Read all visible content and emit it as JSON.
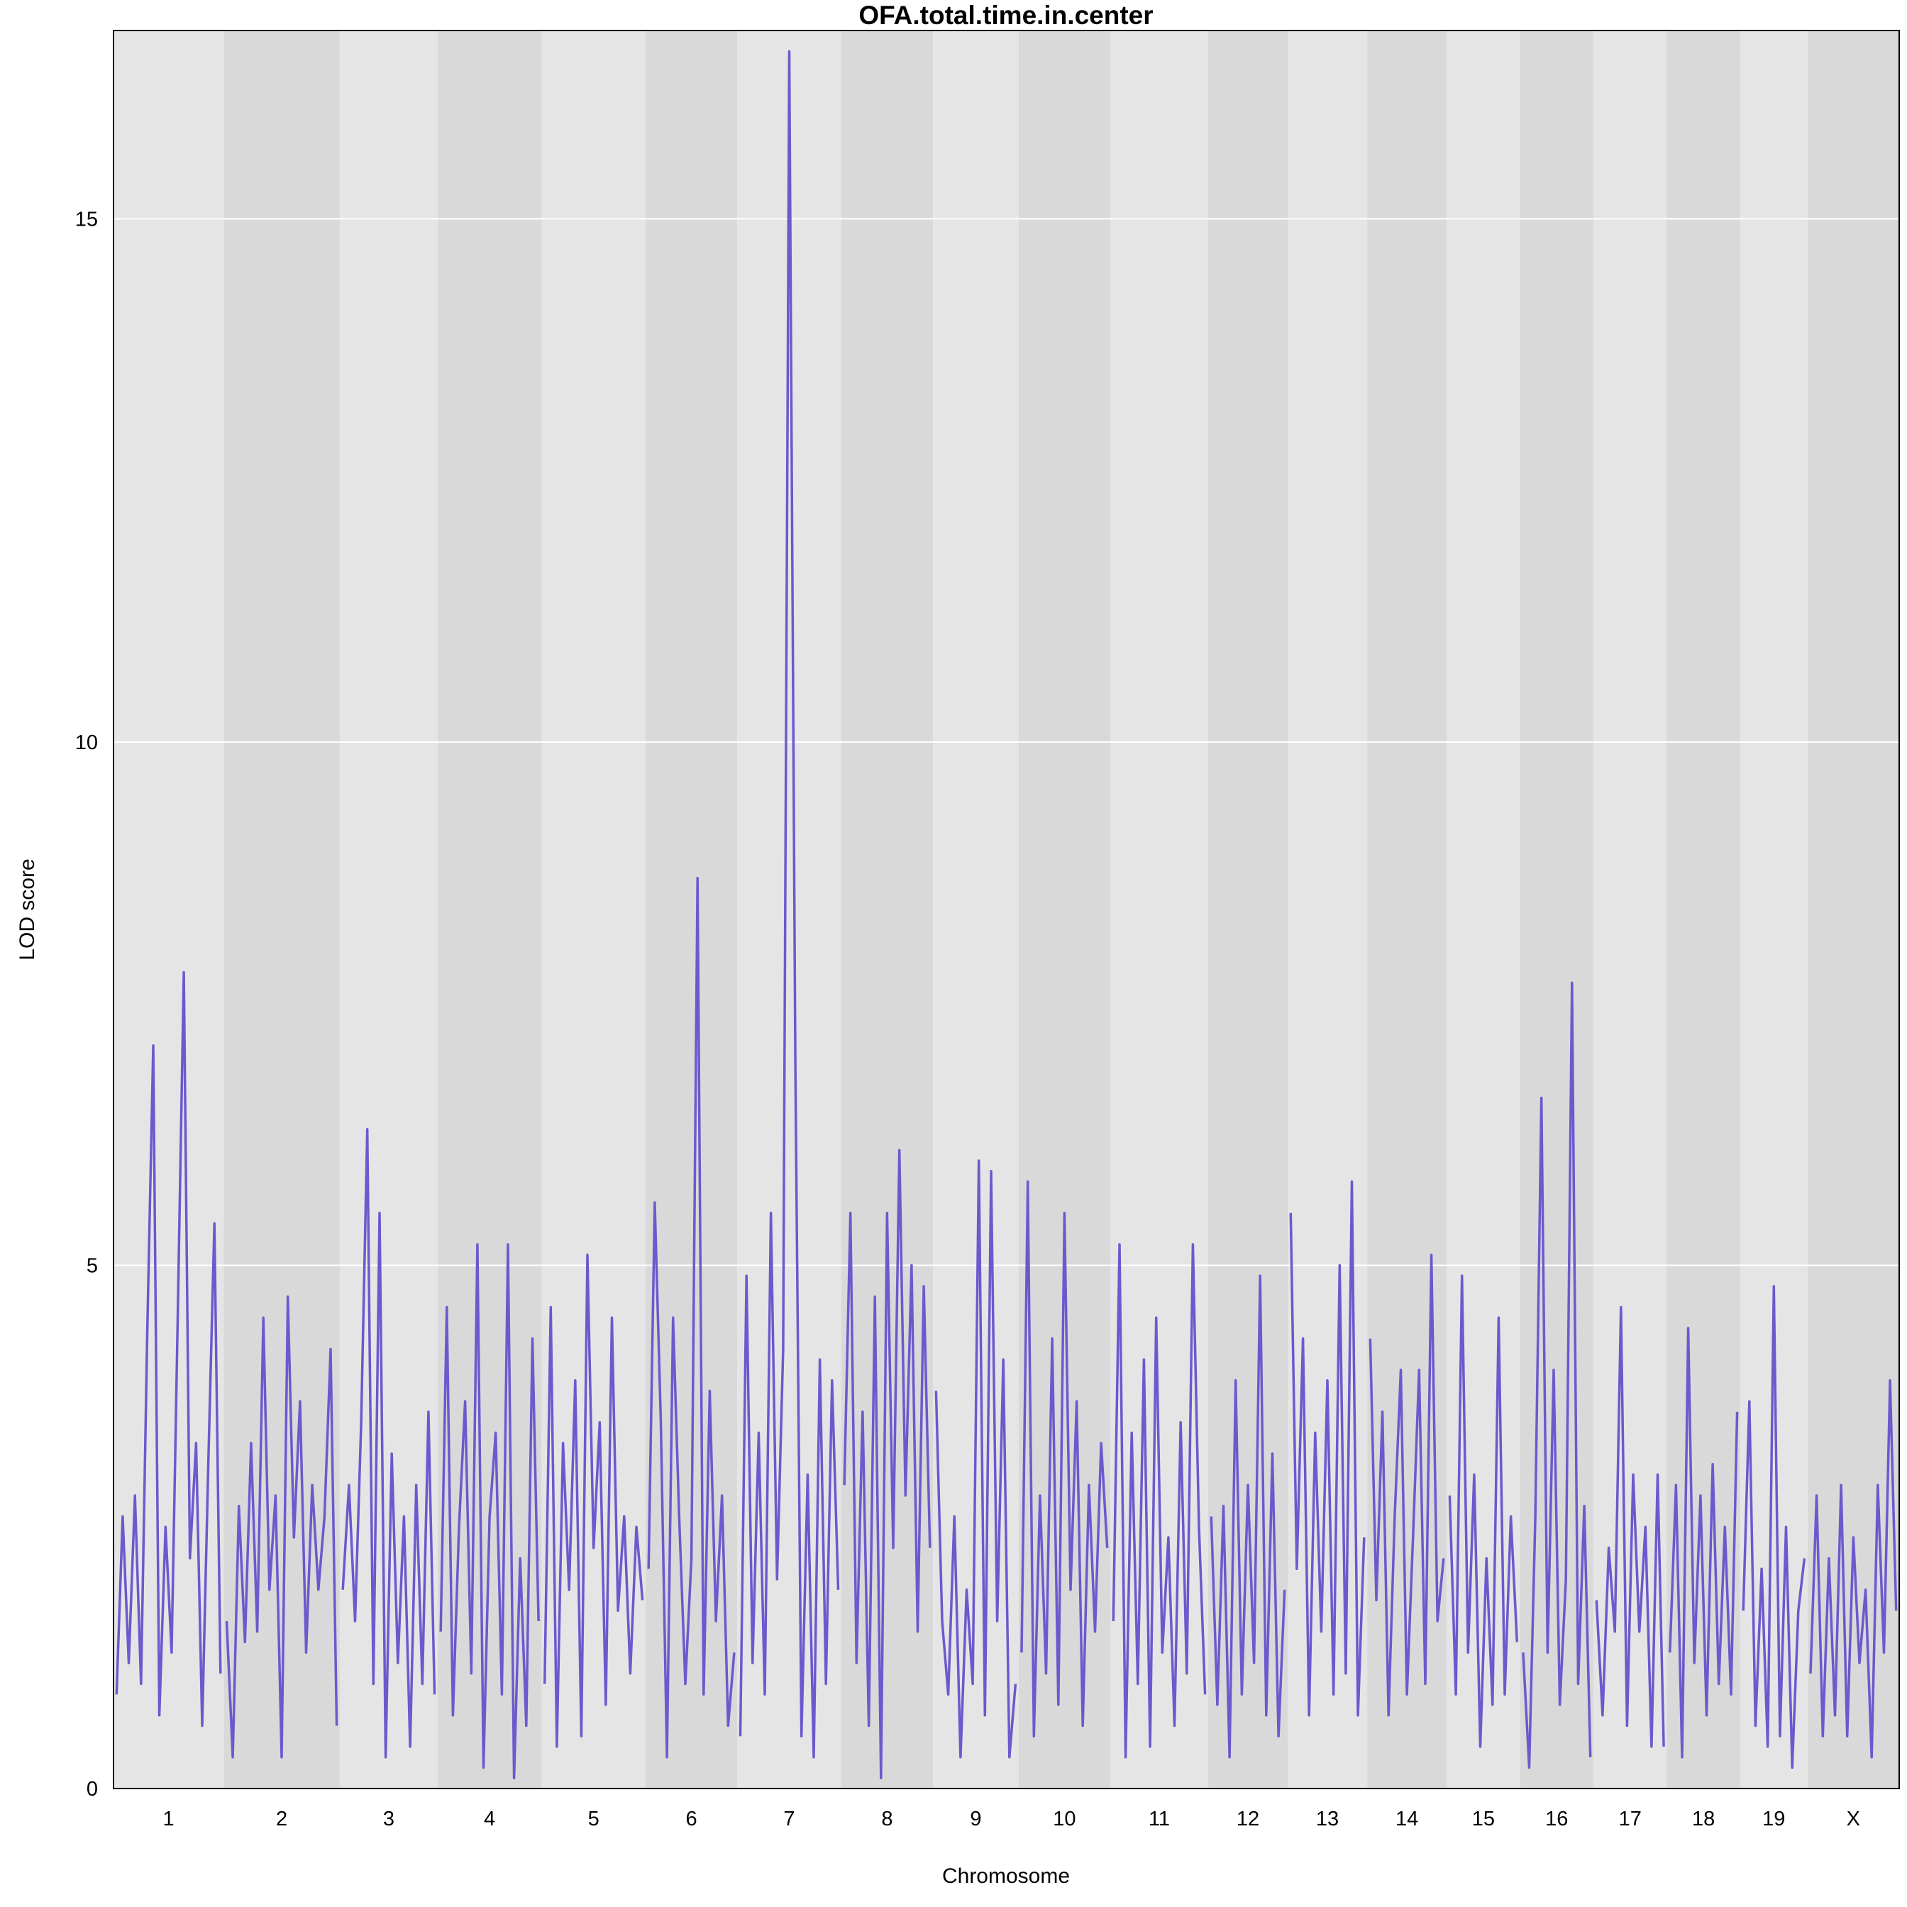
{
  "chart_data": {
    "type": "line",
    "title": "OFA.total.time.in.center",
    "x_label": "Chromosome",
    "y_label": "LOD score",
    "ylim": [
      0,
      16.8
    ],
    "yticks": [
      0,
      5,
      10,
      15
    ],
    "grid": true,
    "color": "#6a5acd",
    "band_colors": [
      "#e5e5e5",
      "#d9d9d9"
    ],
    "chromosomes": [
      {
        "label": "1",
        "values": [
          0.9,
          2.6,
          1.2,
          2.8,
          1.0,
          4.3,
          7.1,
          0.7,
          2.5,
          1.3,
          4.5,
          7.8,
          2.2,
          3.3,
          0.6,
          3.1,
          5.4,
          1.1
        ]
      },
      {
        "label": "2",
        "values": [
          1.6,
          0.3,
          2.7,
          1.4,
          3.3,
          1.5,
          4.5,
          1.9,
          2.8,
          0.3,
          4.7,
          2.4,
          3.7,
          1.3,
          2.9,
          1.9,
          2.6,
          4.2,
          0.6
        ]
      },
      {
        "label": "3",
        "values": [
          1.9,
          2.9,
          1.6,
          3.5,
          6.3,
          1.0,
          5.5,
          0.3,
          3.2,
          1.2,
          2.6,
          0.4,
          2.9,
          1.0,
          3.6,
          0.9
        ]
      },
      {
        "label": "4",
        "values": [
          1.5,
          4.6,
          0.7,
          2.5,
          3.7,
          1.1,
          5.2,
          0.2,
          2.6,
          3.4,
          0.9,
          5.2,
          0.1,
          2.2,
          0.6,
          4.3,
          1.6
        ]
      },
      {
        "label": "5",
        "values": [
          1.0,
          4.6,
          0.4,
          3.3,
          1.9,
          3.9,
          0.5,
          5.1,
          2.3,
          3.5,
          0.8,
          4.5,
          1.7,
          2.6,
          1.1,
          2.5,
          1.8
        ]
      },
      {
        "label": "6",
        "values": [
          2.1,
          5.6,
          3.5,
          0.3,
          4.5,
          2.6,
          1.0,
          2.2,
          8.7,
          0.9,
          3.8,
          1.6,
          2.8,
          0.6,
          1.3
        ]
      },
      {
        "label": "7",
        "values": [
          0.5,
          4.9,
          1.2,
          3.4,
          0.9,
          5.5,
          2.0,
          4.2,
          16.6,
          6.9,
          0.5,
          3.0,
          0.3,
          4.1,
          1.0,
          3.9,
          1.9
        ]
      },
      {
        "label": "8",
        "values": [
          2.9,
          5.5,
          1.2,
          3.6,
          0.6,
          4.7,
          0.1,
          5.5,
          2.3,
          6.1,
          2.8,
          5.0,
          1.5,
          4.8,
          2.3
        ]
      },
      {
        "label": "9",
        "values": [
          3.8,
          1.6,
          0.9,
          2.6,
          0.3,
          1.9,
          1.0,
          6.0,
          0.7,
          5.9,
          1.6,
          4.1,
          0.3,
          1.0
        ]
      },
      {
        "label": "10",
        "values": [
          1.3,
          5.8,
          0.5,
          2.8,
          1.1,
          4.3,
          0.8,
          5.5,
          1.9,
          3.7,
          0.6,
          2.9,
          1.5,
          3.3,
          2.3
        ]
      },
      {
        "label": "11",
        "values": [
          1.6,
          5.2,
          0.3,
          3.4,
          1.0,
          4.1,
          0.4,
          4.5,
          1.3,
          2.4,
          0.6,
          3.5,
          1.1,
          5.2,
          2.5,
          0.9
        ]
      },
      {
        "label": "12",
        "values": [
          2.6,
          0.8,
          2.7,
          0.3,
          3.9,
          0.9,
          2.9,
          1.2,
          4.9,
          0.7,
          3.2,
          0.5,
          1.9
        ]
      },
      {
        "label": "13",
        "values": [
          5.5,
          2.1,
          4.3,
          0.7,
          3.4,
          1.5,
          3.9,
          0.9,
          5.0,
          1.1,
          5.8,
          0.7,
          2.4
        ]
      },
      {
        "label": "14",
        "values": [
          4.3,
          1.8,
          3.6,
          0.7,
          2.6,
          4.0,
          0.9,
          2.4,
          4.0,
          1.0,
          5.1,
          1.6,
          2.2
        ]
      },
      {
        "label": "15",
        "values": [
          2.8,
          0.9,
          4.9,
          1.3,
          3.0,
          0.4,
          2.2,
          0.8,
          4.5,
          0.9,
          2.6,
          1.4
        ]
      },
      {
        "label": "16",
        "values": [
          1.3,
          0.2,
          2.6,
          6.6,
          1.3,
          4.0,
          0.8,
          2.0,
          7.7,
          1.0,
          2.7,
          0.3
        ]
      },
      {
        "label": "17",
        "values": [
          1.8,
          0.7,
          2.3,
          1.5,
          4.6,
          0.6,
          3.0,
          1.5,
          2.5,
          0.4,
          3.0,
          0.4
        ]
      },
      {
        "label": "18",
        "values": [
          1.3,
          2.9,
          0.3,
          4.4,
          1.2,
          2.8,
          0.7,
          3.1,
          1.0,
          2.5,
          0.9,
          3.6
        ]
      },
      {
        "label": "19",
        "values": [
          1.7,
          3.7,
          0.6,
          2.1,
          0.4,
          4.8,
          0.5,
          2.5,
          0.2,
          1.7,
          2.2
        ]
      },
      {
        "label": "X",
        "values": [
          1.1,
          2.8,
          0.5,
          2.2,
          0.7,
          2.9,
          0.5,
          2.4,
          1.2,
          1.9,
          0.3,
          2.9,
          1.3,
          3.9,
          1.7
        ]
      }
    ]
  }
}
